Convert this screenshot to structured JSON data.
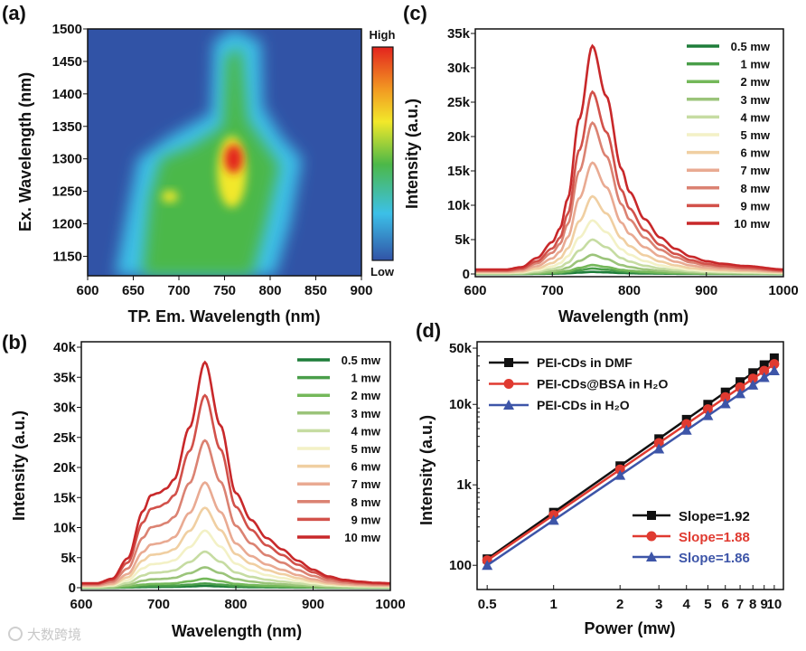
{
  "watermark": "大数跨境",
  "chart_data": [
    {
      "panel": "(a)",
      "type": "heatmap",
      "xlabel": "TP. Em. Wavelength (nm)",
      "ylabel": "Ex. Wavelength (nm)",
      "xlim": [
        600,
        900
      ],
      "ylim": [
        1120,
        1500
      ],
      "xticks": [
        "600",
        "650",
        "700",
        "750",
        "800",
        "850",
        "900"
      ],
      "yticks": [
        "1150",
        "1200",
        "1250",
        "1300",
        "1350",
        "1400",
        "1450",
        "1500"
      ],
      "colorbar": {
        "high": "High",
        "low": "Low"
      },
      "colors": {
        "low": "#3153a6",
        "cyan": "#3cc0e8",
        "green": "#4cb848",
        "yellow": "#f2e82a",
        "red": "#e3241e"
      },
      "regions": {
        "cyan": [
          [
            630,
            1120
          ],
          [
            645,
            1230
          ],
          [
            655,
            1300
          ],
          [
            690,
            1335
          ],
          [
            735,
            1370
          ],
          [
            738,
            1480
          ],
          [
            760,
            1500
          ],
          [
            790,
            1480
          ],
          [
            792,
            1380
          ],
          [
            812,
            1335
          ],
          [
            835,
            1300
          ],
          [
            822,
            1200
          ],
          [
            805,
            1120
          ]
        ],
        "green": [
          [
            660,
            1120
          ],
          [
            668,
            1240
          ],
          [
            680,
            1300
          ],
          [
            715,
            1320
          ],
          [
            748,
            1350
          ],
          [
            752,
            1460
          ],
          [
            768,
            1470
          ],
          [
            775,
            1360
          ],
          [
            795,
            1320
          ],
          [
            810,
            1290
          ],
          [
            795,
            1200
          ],
          [
            780,
            1120
          ]
        ]
      },
      "hotspots": [
        {
          "em": 758,
          "ex": 1280,
          "level": "yellow",
          "em_width": 16,
          "ex_width": 55
        },
        {
          "em": 760,
          "ex": 1300,
          "level": "red",
          "em_width": 10,
          "ex_width": 22
        },
        {
          "em": 690,
          "ex": 1242,
          "level": "yellow",
          "em_width": 9,
          "ex_width": 9
        }
      ]
    },
    {
      "panel": "(b)",
      "type": "line",
      "xlabel": "Wavelength (nm)",
      "ylabel": "Intensity (a.u.)",
      "xlim": [
        600,
        1000
      ],
      "ylim": [
        0,
        40000
      ],
      "xticks": [
        "600",
        "700",
        "800",
        "900",
        "1000"
      ],
      "yticks": [
        "0",
        "5k",
        "10k",
        "15k",
        "20k",
        "25k",
        "30k",
        "35k",
        "40k"
      ],
      "legend_position": "top-right",
      "series_names": [
        "0.5 mw",
        "1 mw",
        "2 mw",
        "3 mw",
        "4 mw",
        "5 mw",
        "6 mw",
        "7 mw",
        "8 mw",
        "9 mw",
        "10 mw"
      ],
      "series_colors": [
        "#1e7d3a",
        "#4a9e4a",
        "#74b85a",
        "#9bc47a",
        "#c6dca2",
        "#f3f1c6",
        "#f0cfa2",
        "#e9aa92",
        "#db8272",
        "#d2514a",
        "#c8282a"
      ],
      "peak_wavelength": 760,
      "peak_values": [
        300,
        700,
        1500,
        3400,
        6000,
        9500,
        13300,
        17500,
        24500,
        32000,
        37500
      ],
      "profile_x": [
        600,
        620,
        640,
        660,
        680,
        690,
        700,
        710,
        720,
        740,
        760,
        780,
        800,
        820,
        840,
        860,
        880,
        900,
        920,
        940,
        960,
        980,
        1000
      ],
      "profile_y": [
        0.02,
        0.02,
        0.04,
        0.13,
        0.34,
        0.41,
        0.42,
        0.44,
        0.48,
        0.71,
        1.0,
        0.72,
        0.42,
        0.3,
        0.22,
        0.17,
        0.12,
        0.08,
        0.05,
        0.035,
        0.027,
        0.022,
        0.02
      ]
    },
    {
      "panel": "(c)",
      "type": "line",
      "xlabel": "Wavelength (nm)",
      "ylabel": "Intensity (a.u.)",
      "xlim": [
        600,
        1000
      ],
      "ylim": [
        0,
        35000
      ],
      "xticks": [
        "600",
        "700",
        "800",
        "900",
        "1000"
      ],
      "yticks": [
        "0",
        "5k",
        "10k",
        "15k",
        "20k",
        "25k",
        "30k",
        "35k"
      ],
      "legend_position": "top-right",
      "series_names": [
        "0.5 mw",
        "1 mw",
        "2 mw",
        "3 mw",
        "4 mw",
        "5 mw",
        "6 mw",
        "7 mw",
        "8 mw",
        "9 mw",
        "10 mw"
      ],
      "series_colors": [
        "#1e7d3a",
        "#4a9e4a",
        "#74b85a",
        "#9bc47a",
        "#c6dca2",
        "#f3f1c6",
        "#f0cfa2",
        "#e9aa92",
        "#db8272",
        "#d2514a",
        "#c8282a"
      ],
      "peak_wavelength": 752,
      "peak_values": [
        300,
        800,
        1300,
        2800,
        5000,
        7800,
        11300,
        16200,
        22000,
        26500,
        33200
      ],
      "profile_x": [
        600,
        640,
        660,
        680,
        700,
        710,
        720,
        735,
        752,
        770,
        790,
        800,
        820,
        840,
        860,
        880,
        900,
        920,
        950,
        1000
      ],
      "profile_y": [
        0.02,
        0.02,
        0.03,
        0.07,
        0.14,
        0.2,
        0.33,
        0.68,
        1.0,
        0.78,
        0.46,
        0.36,
        0.24,
        0.16,
        0.11,
        0.076,
        0.056,
        0.045,
        0.035,
        0.02
      ]
    },
    {
      "panel": "(d)",
      "type": "line",
      "scale": "log-log",
      "xlabel": "Power (mw)",
      "ylabel": "Intensity (a.u.)",
      "xlim": [
        0.45,
        11
      ],
      "ylim": [
        50,
        60000
      ],
      "xticks": [
        {
          "v": 0.5,
          "label": "0.5"
        },
        {
          "v": 1,
          "label": "1"
        },
        {
          "v": 2,
          "label": "2"
        },
        {
          "v": 3,
          "label": "3"
        },
        {
          "v": 4,
          "label": "4"
        },
        {
          "v": 5,
          "label": "5"
        },
        {
          "v": 6,
          "label": "6"
        },
        {
          "v": 7,
          "label": "7"
        },
        {
          "v": 8,
          "label": "8"
        },
        {
          "v": 9,
          "label": "9"
        },
        {
          "v": 10,
          "label": "10"
        }
      ],
      "yticks": [
        {
          "v": 100,
          "label": "100"
        },
        {
          "v": 1000,
          "label": "1k"
        },
        {
          "v": 10000,
          "label": "10k"
        },
        {
          "v": 50000,
          "label": "50k"
        }
      ],
      "x": [
        0.5,
        1,
        2,
        3,
        4,
        5,
        6,
        7,
        8,
        9,
        10
      ],
      "series": [
        {
          "name": "PEI-CDs in DMF",
          "marker": "square",
          "color": "#111111",
          "slope_label": "Slope=1.92",
          "values": [
            120,
            455,
            1720,
            3730,
            6500,
            10000,
            14200,
            19100,
            24700,
            31000,
            37800
          ]
        },
        {
          "name": "PEI-CDs@BSA in H₂O",
          "marker": "circle",
          "color": "#e03a30",
          "slope_label": "Slope=1.88",
          "values": [
            115,
            422,
            1550,
            3310,
            5700,
            8690,
            12300,
            16300,
            20900,
            26100,
            31700
          ]
        },
        {
          "name": "PEI-CDs in H₂O",
          "marker": "triangle",
          "color": "#3d55a8",
          "slope_label": "Slope=1.86",
          "values": [
            100,
            363,
            1315,
            2800,
            4780,
            7250,
            10200,
            13600,
            17400,
            21600,
            26200
          ]
        }
      ],
      "legend_position": "top-left",
      "slope_legend_position": "bottom-right"
    }
  ]
}
